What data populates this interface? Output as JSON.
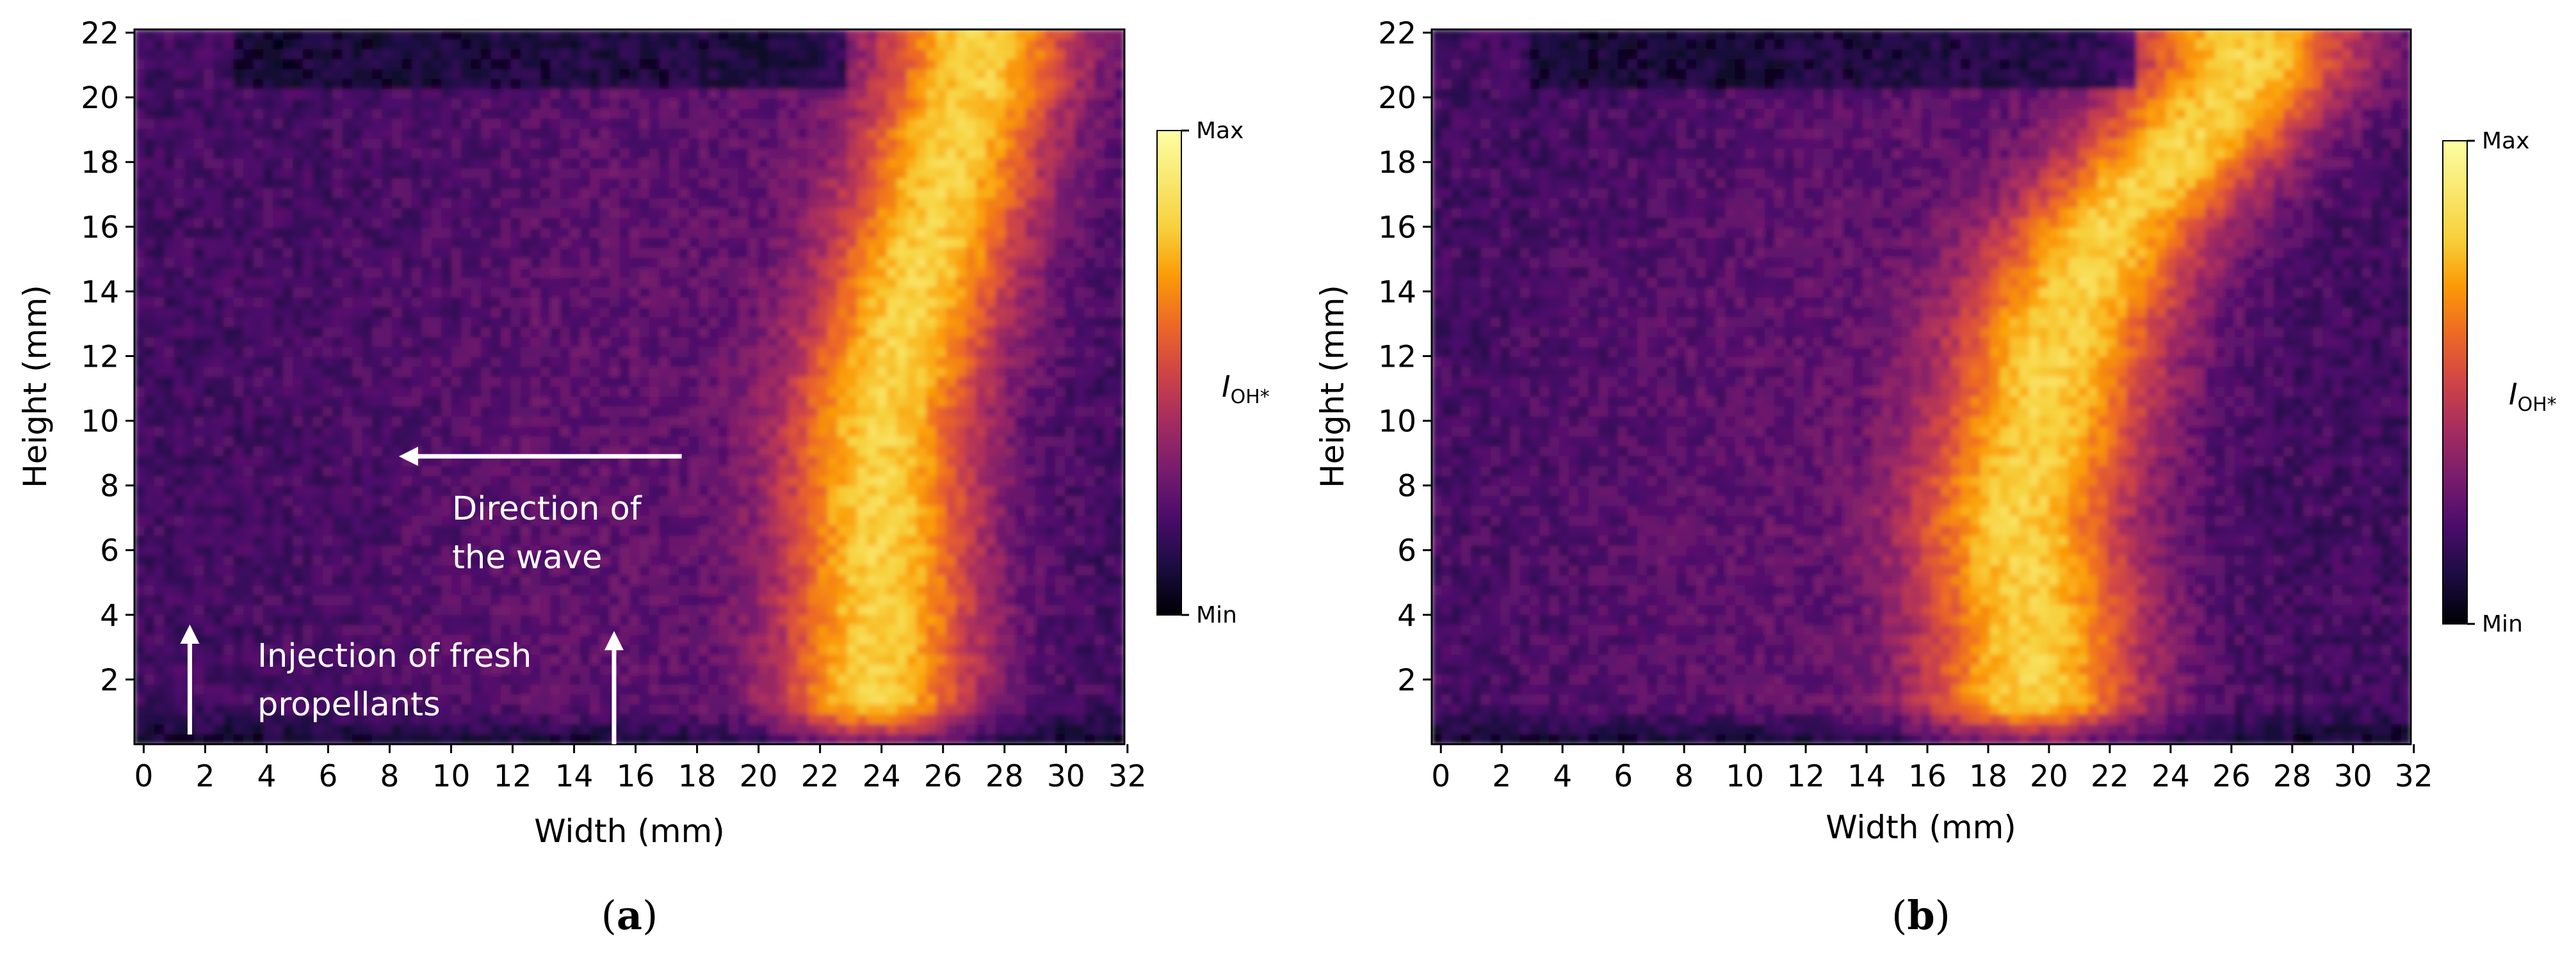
{
  "chart_data": [
    {
      "type": "heatmap",
      "panel_label": "(a)",
      "panel_letter": "a",
      "xlabel": "Width (mm)",
      "ylabel": "Height (mm)",
      "xlim": [
        -0.3,
        31.9
      ],
      "ylim": [
        0,
        22.1
      ],
      "xticks": [
        0,
        2,
        4,
        6,
        8,
        10,
        12,
        14,
        16,
        18,
        20,
        22,
        24,
        26,
        28,
        30,
        32
      ],
      "yticks": [
        2,
        4,
        6,
        8,
        10,
        12,
        14,
        16,
        18,
        20,
        22
      ],
      "colormap": "inferno",
      "colorbar": {
        "label_main": "I",
        "label_sub": "OH*",
        "max_label": "Max",
        "min_label": "Min"
      },
      "intensity_ridge": [
        [
          1,
          23.8
        ],
        [
          4,
          24.0
        ],
        [
          7,
          24.0
        ],
        [
          10,
          24.0
        ],
        [
          13,
          24.8
        ],
        [
          16,
          25.7
        ],
        [
          19,
          26.5
        ],
        [
          21,
          27.2
        ]
      ],
      "annotations": [
        {
          "text": [
            "Direction of",
            "the wave"
          ],
          "arrow_from": [
            17.5,
            8.9
          ],
          "arrow_to": [
            8.3,
            8.9
          ]
        },
        {
          "text": [
            "Injection of fresh",
            "propellants"
          ],
          "arrows": [
            {
              "from": [
                1.5,
                0.3
              ],
              "to": [
                1.5,
                3.7
              ]
            },
            {
              "from": [
                15.3,
                0.0
              ],
              "to": [
                15.3,
                3.5
              ]
            }
          ]
        }
      ]
    },
    {
      "type": "heatmap",
      "panel_label": "(b)",
      "panel_letter": "b",
      "xlabel": "Width (mm)",
      "ylabel": "Height (mm)",
      "xlim": [
        -0.3,
        31.9
      ],
      "ylim": [
        0,
        22.1
      ],
      "xticks": [
        0,
        2,
        4,
        6,
        8,
        10,
        12,
        14,
        16,
        18,
        20,
        22,
        24,
        26,
        28,
        30,
        32
      ],
      "yticks": [
        2,
        4,
        6,
        8,
        10,
        12,
        14,
        16,
        18,
        20,
        22
      ],
      "colormap": "inferno",
      "colorbar": {
        "label_main": "I",
        "label_sub": "OH*",
        "max_label": "Max",
        "min_label": "Min"
      },
      "intensity_ridge": [
        [
          1,
          19.5
        ],
        [
          4,
          19.5
        ],
        [
          7,
          19.0
        ],
        [
          10,
          19.8
        ],
        [
          13,
          20.5
        ],
        [
          16,
          22.0
        ],
        [
          19,
          25.0
        ],
        [
          21,
          26.5
        ]
      ],
      "annotations": []
    }
  ]
}
